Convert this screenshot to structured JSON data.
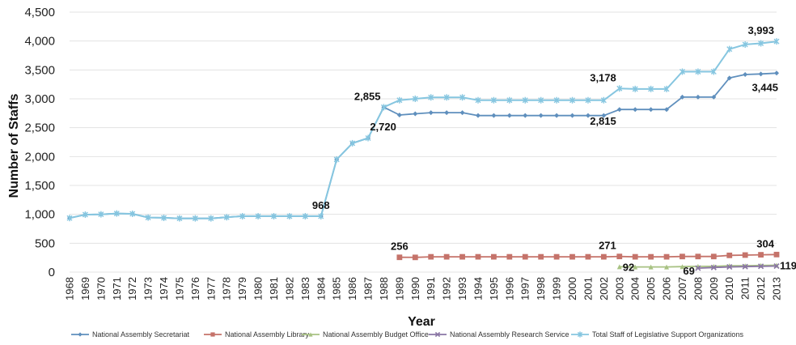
{
  "chart_data": {
    "type": "line",
    "xlabel": "Year",
    "ylabel": "Number of Staffs",
    "ylim": [
      0,
      4500
    ],
    "yticks": [
      0,
      500,
      1000,
      1500,
      2000,
      2500,
      3000,
      3500,
      4000,
      4500
    ],
    "ytick_labels": [
      "0",
      "500",
      "1,000",
      "1,500",
      "2,000",
      "2,500",
      "3,000",
      "3,500",
      "4,000",
      "4,500"
    ],
    "grid": "horizontal",
    "legend_position": "bottom",
    "categories": [
      "1968",
      "1969",
      "1970",
      "1971",
      "1972",
      "1973",
      "1974",
      "1975",
      "1976",
      "1977",
      "1978",
      "1979",
      "1980",
      "1981",
      "1982",
      "1983",
      "1984",
      "1985",
      "1986",
      "1987",
      "1988",
      "1989",
      "1990",
      "1991",
      "1992",
      "1993",
      "1994",
      "1995",
      "1996",
      "1997",
      "1998",
      "1999",
      "2000",
      "2001",
      "2002",
      "2003",
      "2004",
      "2005",
      "2006",
      "2007",
      "2008",
      "2009",
      "2010",
      "2011",
      "2012",
      "2013"
    ],
    "series": [
      {
        "name": "National Assembly Secretariat",
        "color": "#5f8fbd",
        "marker": "diamond",
        "values": [
          935,
          995,
          1000,
          1015,
          1010,
          945,
          940,
          930,
          930,
          930,
          950,
          968,
          968,
          968,
          968,
          968,
          968,
          1950,
          2230,
          2320,
          2855,
          2720,
          2740,
          2760,
          2760,
          2760,
          2710,
          2710,
          2710,
          2710,
          2710,
          2710,
          2710,
          2710,
          2710,
          2815,
          2815,
          2815,
          2815,
          3030,
          3030,
          3030,
          3360,
          3420,
          3430,
          3445
        ]
      },
      {
        "name": "National Assembly Library",
        "color": "#c5736a",
        "marker": "square",
        "values": [
          null,
          null,
          null,
          null,
          null,
          null,
          null,
          null,
          null,
          null,
          null,
          null,
          null,
          null,
          null,
          null,
          null,
          null,
          null,
          null,
          null,
          256,
          255,
          265,
          265,
          265,
          265,
          265,
          265,
          265,
          265,
          265,
          265,
          265,
          265,
          271,
          265,
          265,
          265,
          270,
          270,
          270,
          290,
          295,
          300,
          304
        ]
      },
      {
        "name": "National Assembly Budget Office",
        "color": "#a8c283",
        "marker": "triangle",
        "values": [
          null,
          null,
          null,
          null,
          null,
          null,
          null,
          null,
          null,
          null,
          null,
          null,
          null,
          null,
          null,
          null,
          null,
          null,
          null,
          null,
          null,
          null,
          null,
          null,
          null,
          null,
          null,
          null,
          null,
          null,
          null,
          null,
          null,
          null,
          null,
          92,
          90,
          90,
          90,
          95,
          100,
          100,
          110,
          110,
          115,
          119
        ]
      },
      {
        "name": "National Assembly Research Service",
        "color": "#8a76a4",
        "marker": "cross",
        "values": [
          null,
          null,
          null,
          null,
          null,
          null,
          null,
          null,
          null,
          null,
          null,
          null,
          null,
          null,
          null,
          null,
          null,
          null,
          null,
          null,
          null,
          null,
          null,
          null,
          null,
          null,
          null,
          null,
          null,
          null,
          null,
          null,
          null,
          null,
          null,
          null,
          null,
          null,
          null,
          null,
          69,
          80,
          90,
          95,
          100,
          105
        ]
      },
      {
        "name": "Total Staff of Legislative Support Organizations",
        "color": "#86c6e0",
        "marker": "star",
        "values": [
          935,
          995,
          1000,
          1015,
          1010,
          945,
          940,
          930,
          930,
          930,
          950,
          968,
          968,
          968,
          968,
          968,
          968,
          1950,
          2230,
          2320,
          2855,
          2976,
          3000,
          3025,
          3025,
          3025,
          2975,
          2975,
          2975,
          2975,
          2975,
          2975,
          2975,
          2975,
          2975,
          3178,
          3170,
          3170,
          3170,
          3470,
          3470,
          3470,
          3860,
          3940,
          3960,
          3993
        ]
      }
    ],
    "annotations": [
      {
        "text": "968",
        "x": "1984",
        "y": 968,
        "series": 0,
        "pos": "above"
      },
      {
        "text": "2,855",
        "x": "1988",
        "y": 2855,
        "series": 0,
        "pos": "above-left"
      },
      {
        "text": "2,720",
        "x": "1989",
        "y": 2720,
        "series": 0,
        "pos": "below-left"
      },
      {
        "text": "3,178",
        "x": "2003",
        "y": 3178,
        "series": 4,
        "pos": "above-left"
      },
      {
        "text": "2,815",
        "x": "2003",
        "y": 2815,
        "series": 0,
        "pos": "below-left"
      },
      {
        "text": "3,993",
        "x": "2013",
        "y": 3993,
        "series": 4,
        "pos": "above"
      },
      {
        "text": "3,445",
        "x": "2013",
        "y": 3445,
        "series": 0,
        "pos": "below"
      },
      {
        "text": "256",
        "x": "1989",
        "y": 256,
        "series": 1,
        "pos": "above"
      },
      {
        "text": "271",
        "x": "2003",
        "y": 271,
        "series": 1,
        "pos": "above-left"
      },
      {
        "text": "304",
        "x": "2013",
        "y": 304,
        "series": 1,
        "pos": "above"
      },
      {
        "text": "92",
        "x": "2003",
        "y": 92,
        "series": 2,
        "pos": "right"
      },
      {
        "text": "69",
        "x": "2008",
        "y": 69,
        "series": 3,
        "pos": "left"
      },
      {
        "text": "119",
        "x": "2013",
        "y": 119,
        "series": 2,
        "pos": "right"
      }
    ]
  }
}
